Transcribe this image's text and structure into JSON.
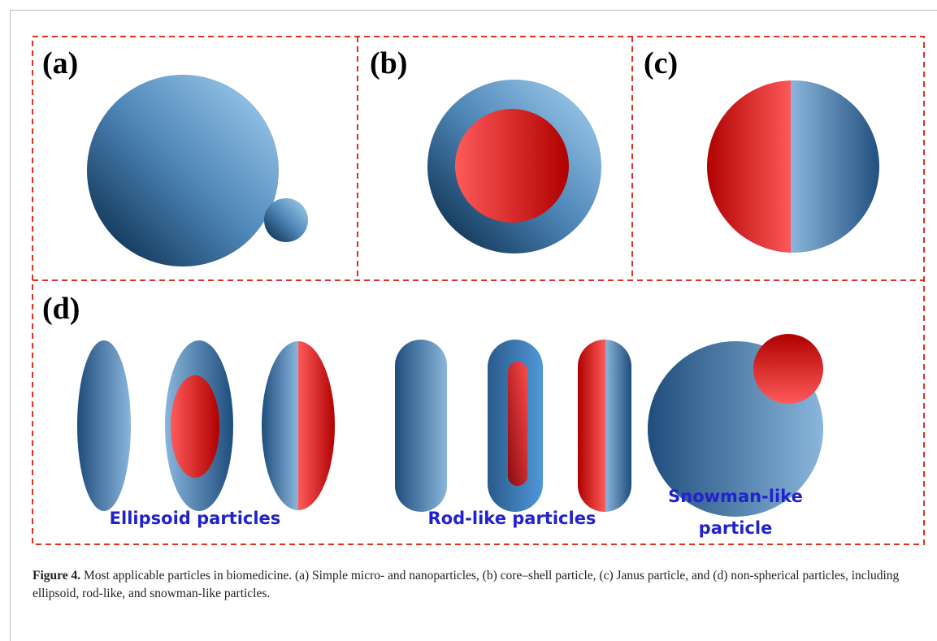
{
  "panels": {
    "a": {
      "label": "(a)"
    },
    "b": {
      "label": "(b)"
    },
    "c": {
      "label": "(c)"
    },
    "d": {
      "label": "(d)",
      "groups": [
        "Ellipsoid particles",
        "Rod-like particles"
      ],
      "snowman_lines": [
        "Snowman-like",
        "particle"
      ]
    }
  },
  "caption": {
    "label": "Figure 4.",
    "text": "Most applicable particles in biomedicine. (a) Simple micro- and nanoparticles, (b) core–shell particle, (c) Janus particle, and (d) non-spherical particles, including ellipsoid, rod-like, and snowman-like particles."
  }
}
